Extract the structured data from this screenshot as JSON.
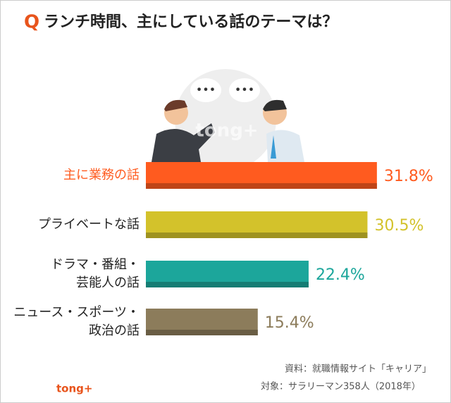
{
  "title_marker": "Q",
  "chart_data": {
    "type": "bar",
    "orientation": "horizontal",
    "title": "ランチ時間、主にしている話のテーマは？",
    "categories": [
      [
        "主に業務の話"
      ],
      [
        "プライベートな話"
      ],
      [
        "ドラマ・番組・",
        "芸能人の話"
      ],
      [
        "ニュース・スポーツ・",
        "政治の話"
      ]
    ],
    "values": [
      31.8,
      30.5,
      22.4,
      15.4
    ],
    "value_labels": [
      "31.8%",
      "30.5%",
      "22.4%",
      "15.4%"
    ],
    "colors": [
      "#ff5b1f",
      "#d3c22b",
      "#1ca69b",
      "#8c7c5b"
    ],
    "highlight_label_color": "#ff5b1f"
  },
  "source": [
    "資料：就職情報サイト「キャリア」",
    "対象：サラリーマン358人（2018年）"
  ],
  "logo": "tong+"
}
